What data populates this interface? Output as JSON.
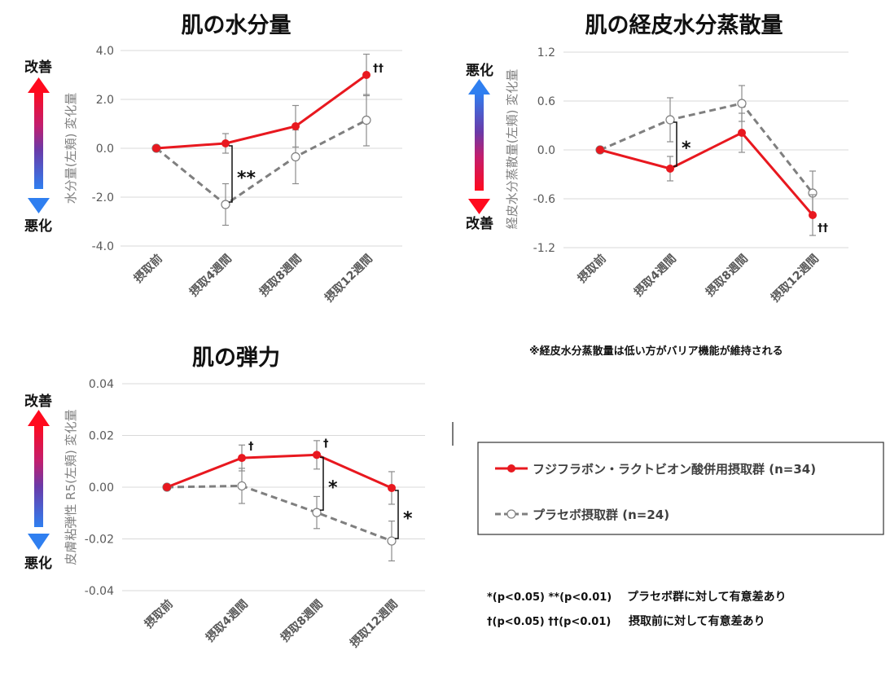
{
  "chart_data": [
    {
      "id": "moisture",
      "type": "line",
      "title": "肌の水分量",
      "ylabel": "水分量(左頬) 変化量",
      "ylim": [
        -4.0,
        4.0
      ],
      "yticks": [
        "4.0",
        "2.0",
        "0.0",
        "-2.0",
        "-4.0"
      ],
      "ytick_values": [
        4.0,
        2.0,
        0.0,
        -2.0,
        -4.0
      ],
      "categories": [
        "摂取前",
        "摂取4週間",
        "摂取8週間",
        "摂取12週間"
      ],
      "arrow": {
        "top_label": "改善",
        "bottom_label": "悪化",
        "top_color": "#ff0000",
        "bottom_color": "#3b82f6"
      },
      "series": [
        {
          "name": "フジフラボン・ラクトビオン酸併用摂取群 (n=34)",
          "values": [
            0.0,
            0.2,
            0.9,
            3.0
          ],
          "err": [
            0,
            0.4,
            0.85,
            0.85
          ],
          "color": "#e8181f",
          "style": "solid"
        },
        {
          "name": "プラセボ摂取群 (n=24)",
          "values": [
            0.0,
            -2.3,
            -0.35,
            1.15
          ],
          "err": [
            0,
            0.85,
            1.1,
            1.05
          ],
          "color": "#7f7f7f",
          "style": "dashed"
        }
      ],
      "sig_brackets": [
        {
          "index": 1,
          "label": "**"
        }
      ],
      "dagger_marks": [
        {
          "index": 3,
          "label": "††"
        }
      ]
    },
    {
      "id": "tewl",
      "type": "line",
      "title": "肌の経皮水分蒸散量",
      "ylabel": "経皮水分蒸散量(左頬) 変化量",
      "ylim": [
        -1.2,
        1.2
      ],
      "yticks": [
        "1.2",
        "0.6",
        "0.0",
        "-0.6",
        "-1.2"
      ],
      "ytick_values": [
        1.2,
        0.6,
        0.0,
        -0.6,
        -1.2
      ],
      "categories": [
        "摂取前",
        "摂取4週間",
        "摂取8週間",
        "摂取12週間"
      ],
      "arrow": {
        "top_label": "悪化",
        "bottom_label": "改善",
        "top_color": "#3b82f6",
        "bottom_color": "#ff0000"
      },
      "series": [
        {
          "name": "フジフラボン・ラクトビオン酸併用摂取群 (n=34)",
          "values": [
            0.0,
            -0.23,
            0.21,
            -0.8
          ],
          "err": [
            0,
            0.15,
            0.24,
            0.25
          ],
          "color": "#e8181f",
          "style": "solid"
        },
        {
          "name": "プラセボ摂取群 (n=24)",
          "values": [
            0.0,
            0.37,
            0.57,
            -0.53
          ],
          "err": [
            0,
            0.27,
            0.22,
            0.27
          ],
          "color": "#7f7f7f",
          "style": "dashed"
        }
      ],
      "sig_brackets": [
        {
          "index": 1,
          "label": "*"
        }
      ],
      "dagger_marks": [
        {
          "index": 3,
          "label": "††"
        }
      ],
      "note": "※経皮水分蒸散量は低い方がバリア機能が維持される"
    },
    {
      "id": "elasticity",
      "type": "line",
      "title": "肌の弾力",
      "ylabel": "皮膚粘弾性 R5(左頬) 変化量",
      "ylim": [
        -0.04,
        0.04
      ],
      "yticks": [
        "0.04",
        "0.02",
        "0.00",
        "-0.02",
        "-0.04"
      ],
      "ytick_values": [
        0.04,
        0.02,
        0.0,
        -0.02,
        -0.04
      ],
      "categories": [
        "摂取前",
        "摂取4週間",
        "摂取8週間",
        "摂取12週間"
      ],
      "arrow": {
        "top_label": "改善",
        "bottom_label": "悪化",
        "top_color": "#ff0000",
        "bottom_color": "#3b82f6"
      },
      "series": [
        {
          "name": "フジフラボン・ラクトビオン酸併用摂取群 (n=34)",
          "values": [
            0.0,
            0.0113,
            0.0125,
            -0.0003
          ],
          "err": [
            0,
            0.005,
            0.0055,
            0.0063
          ],
          "color": "#e8181f",
          "style": "solid"
        },
        {
          "name": "プラセボ摂取群 (n=24)",
          "values": [
            0.0,
            0.0005,
            -0.0098,
            -0.0208
          ],
          "err": [
            0,
            0.0068,
            0.0062,
            0.0077
          ],
          "color": "#7f7f7f",
          "style": "dashed"
        }
      ],
      "sig_brackets": [
        {
          "index": 2,
          "label": "*"
        },
        {
          "index": 3,
          "label": "*"
        }
      ],
      "dagger_marks": [
        {
          "index": 1,
          "label": "†"
        },
        {
          "index": 2,
          "label": "†"
        }
      ]
    }
  ],
  "legend": {
    "items": [
      {
        "label": "フジフラボン・ラクトビオン酸併用摂取群 (n=34)",
        "color": "#e8181f",
        "style": "solid"
      },
      {
        "label": "プラセボ摂取群 (n=24)",
        "color": "#7f7f7f",
        "style": "dashed"
      }
    ]
  },
  "footnotes": {
    "line1_markers": "*(p<0.05)  **(p<0.01)",
    "line1_text": "プラセボ群に対して有意差あり",
    "line2_markers": "†(p<0.05)  ††(p<0.01)",
    "line2_text": "摂取前に対して有意差あり"
  }
}
